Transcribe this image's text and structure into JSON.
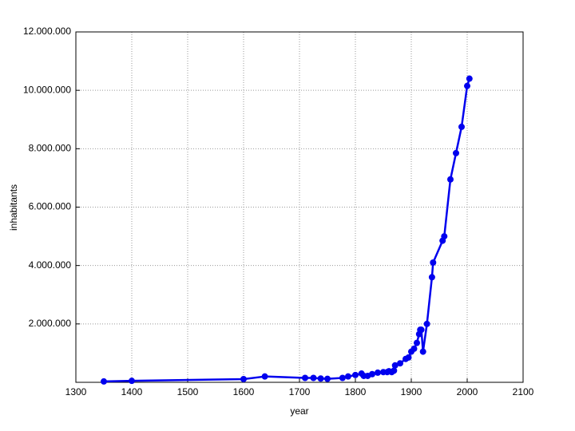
{
  "chart_data": {
    "type": "line",
    "x_label": "year",
    "y_label": "inhabitants",
    "x": [
      1350,
      1400,
      1600,
      1638,
      1710,
      1725,
      1738,
      1750,
      1777,
      1787,
      1800,
      1811,
      1815,
      1822,
      1830,
      1840,
      1850,
      1857,
      1860,
      1865,
      1869,
      1871,
      1880,
      1890,
      1895,
      1900,
      1905,
      1910,
      1914,
      1916,
      1918,
      1921,
      1928,
      1937,
      1939,
      1956,
      1959,
      1970,
      1980,
      1990,
      2000,
      2004
    ],
    "series": [
      {
        "name": "inhabitants",
        "color": "#0000ee",
        "values": [
          30000,
          50000,
          110000,
          200000,
          150000,
          150000,
          130000,
          120000,
          150000,
          200000,
          250000,
          300000,
          220000,
          220000,
          280000,
          330000,
          350000,
          350000,
          380000,
          350000,
          400000,
          580000,
          650000,
          800000,
          850000,
          1050000,
          1150000,
          1350000,
          1650000,
          1800000,
          1800000,
          1050000,
          2000000,
          3600000,
          4100000,
          4850000,
          5000000,
          6950000,
          7850000,
          8750000,
          10150000,
          10400000
        ]
      }
    ],
    "xlim": [
      1300,
      2100
    ],
    "xticks": [
      1300,
      1400,
      1500,
      1600,
      1700,
      1800,
      1900,
      2000,
      2100
    ],
    "ylim": [
      0,
      12000000
    ],
    "yticks": [
      {
        "value": 2000000,
        "label": "2.000.000"
      },
      {
        "value": 4000000,
        "label": "4.000.000"
      },
      {
        "value": 6000000,
        "label": "6.000.000"
      },
      {
        "value": 8000000,
        "label": "8.000.000"
      },
      {
        "value": 10000000,
        "label": "10.000.000"
      },
      {
        "value": 12000000,
        "label": "12.000.000"
      }
    ],
    "grid": true
  }
}
